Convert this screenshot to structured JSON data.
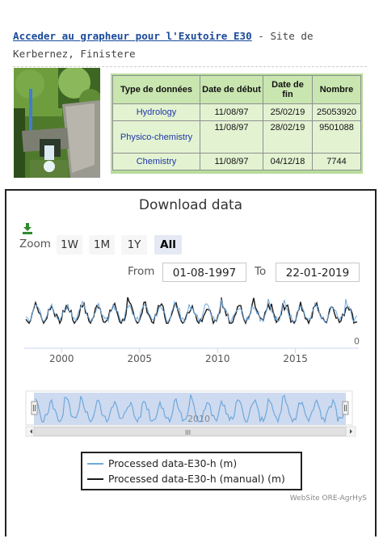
{
  "header": {
    "link_text": "Acceder au grapheur pour l'Exutoire E30",
    "separator": " - ",
    "site_text": "Site de Kerbernez, Finistere"
  },
  "table": {
    "headers": [
      "Type de données",
      "Date de début",
      "Date de fin",
      "Nombre"
    ],
    "rows": [
      {
        "type": "Hydrology",
        "start": "11/08/97",
        "end": "25/02/19",
        "count": "25053920"
      },
      {
        "type": "Physico-chemistry",
        "start": "11/08/97",
        "end": "28/02/19",
        "count": "9501088"
      },
      {
        "type": "Chemistry",
        "start": "11/08/97",
        "end": "04/12/18",
        "count": "7744"
      }
    ]
  },
  "widget": {
    "title": "Download data",
    "zoom_label": "Zoom",
    "zoom_buttons": [
      "1W",
      "1M",
      "1Y",
      "All"
    ],
    "zoom_active": "All",
    "from_label": "From",
    "from_value": "01-08-1997",
    "to_label": "To",
    "to_value": "22-01-2019",
    "credits": "WebSite ORE-AgrHyS",
    "navigator_label": "2010",
    "scrollbar_grip": "III",
    "y_tick_label": "0"
  },
  "colors": {
    "table_bg": "#b7dd9b",
    "link": "#1a4a9a",
    "series_processed": "#6fa8dc",
    "series_manual": "#1b1b1b",
    "navigator_mask": "#c5d3ec"
  },
  "chart_data": {
    "type": "line",
    "title": "",
    "xlabel": "",
    "ylabel": "",
    "x_ticks": [
      "2000",
      "2005",
      "2010",
      "2015"
    ],
    "xlim": [
      1997.6,
      2019.06
    ],
    "legend_position": "bottom-center",
    "series": [
      {
        "name": "Processed data-E30-h (m)"
      },
      {
        "name": "Processed data-E30-h (manual) (m)"
      }
    ]
  }
}
